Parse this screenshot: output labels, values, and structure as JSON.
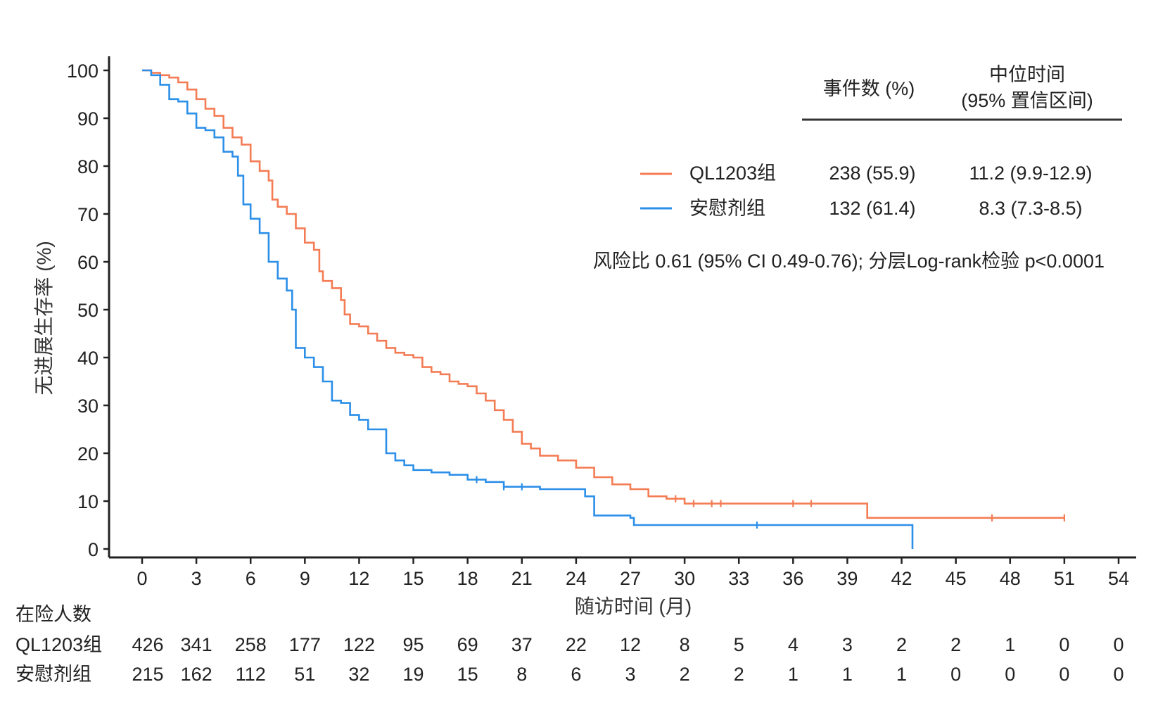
{
  "chart_data": {
    "type": "line",
    "subtype": "kaplan-meier",
    "ylabel": "无进展生存率 (%)",
    "xlabel": "随访时间 (月)",
    "xlim": [
      0,
      54
    ],
    "ylim": [
      0,
      100
    ],
    "x_ticks": [
      "0",
      "3",
      "6",
      "9",
      "12",
      "15",
      "18",
      "21",
      "24",
      "27",
      "30",
      "33",
      "36",
      "39",
      "42",
      "45",
      "48",
      "51",
      "54"
    ],
    "y_ticks": [
      "0",
      "10",
      "20",
      "30",
      "40",
      "50",
      "60",
      "70",
      "80",
      "90",
      "100"
    ],
    "table_headers": {
      "events": "事件数 (%)",
      "median_line1": "中位时间",
      "median_line2": "(95% 置信区间)"
    },
    "hr_text": "风险比 0.61 (95% CI 0.49-0.76); 分层Log-rank检验 p<0.0001",
    "risk_table_title": "在险人数",
    "series": [
      {
        "name": "QL1203组",
        "color": "#f47c54",
        "events": "238 (55.9)",
        "median": "11.2 (9.9-12.9)",
        "at_risk": [
          "426",
          "341",
          "258",
          "177",
          "122",
          "95",
          "69",
          "37",
          "22",
          "12",
          "8",
          "5",
          "4",
          "3",
          "2",
          "2",
          "1",
          "0",
          "0"
        ],
        "points": [
          [
            0,
            100
          ],
          [
            0.5,
            99.5
          ],
          [
            1,
            99
          ],
          [
            1.5,
            98.5
          ],
          [
            2,
            97.5
          ],
          [
            2.5,
            96
          ],
          [
            3,
            94
          ],
          [
            3.5,
            92
          ],
          [
            4,
            90.5
          ],
          [
            4.5,
            88
          ],
          [
            5,
            86
          ],
          [
            5.5,
            84.5
          ],
          [
            6,
            81
          ],
          [
            6.5,
            79
          ],
          [
            7,
            77
          ],
          [
            7.2,
            73
          ],
          [
            7.5,
            71.5
          ],
          [
            8,
            70
          ],
          [
            8.5,
            67
          ],
          [
            9,
            64
          ],
          [
            9.5,
            62.5
          ],
          [
            9.8,
            58
          ],
          [
            10,
            56
          ],
          [
            10.5,
            54.5
          ],
          [
            11,
            52
          ],
          [
            11.2,
            49
          ],
          [
            11.5,
            47
          ],
          [
            12,
            46.5
          ],
          [
            12.5,
            45
          ],
          [
            13,
            43.5
          ],
          [
            13.5,
            42
          ],
          [
            14,
            41
          ],
          [
            14.5,
            40.5
          ],
          [
            15,
            40
          ],
          [
            15.5,
            38
          ],
          [
            16,
            37
          ],
          [
            16.5,
            36.5
          ],
          [
            17,
            35
          ],
          [
            17.5,
            34.5
          ],
          [
            18,
            34
          ],
          [
            18.5,
            32.5
          ],
          [
            19,
            31
          ],
          [
            19.5,
            29
          ],
          [
            20,
            27
          ],
          [
            20.5,
            24.5
          ],
          [
            21,
            22
          ],
          [
            21.5,
            21
          ],
          [
            22,
            19.5
          ],
          [
            23,
            18.5
          ],
          [
            24,
            17
          ],
          [
            25,
            15
          ],
          [
            26,
            13.5
          ],
          [
            27,
            12.5
          ],
          [
            28,
            11
          ],
          [
            29,
            10.5
          ],
          [
            30,
            9.5
          ],
          [
            33,
            9.5
          ],
          [
            36,
            9.5
          ],
          [
            40,
            9.5
          ],
          [
            40.1,
            6.5
          ],
          [
            44,
            6.5
          ],
          [
            48,
            6.5
          ],
          [
            51,
            6.5
          ]
        ],
        "censor_x": [
          29.5,
          30.5,
          31.5,
          32,
          36,
          37,
          47,
          51
        ]
      },
      {
        "name": "安慰剂组",
        "color": "#2c8fe8",
        "events": "132 (61.4)",
        "median": "8.3 (7.3-8.5)",
        "at_risk": [
          "215",
          "162",
          "112",
          "51",
          "32",
          "19",
          "15",
          "8",
          "6",
          "3",
          "2",
          "2",
          "1",
          "1",
          "1",
          "0",
          "0",
          "0",
          "0"
        ],
        "points": [
          [
            0,
            100
          ],
          [
            0.5,
            99
          ],
          [
            1,
            97
          ],
          [
            1.5,
            94
          ],
          [
            2,
            93.5
          ],
          [
            2.5,
            91
          ],
          [
            3,
            88
          ],
          [
            3.5,
            87.5
          ],
          [
            4,
            86
          ],
          [
            4.5,
            83
          ],
          [
            5,
            82
          ],
          [
            5.3,
            78
          ],
          [
            5.6,
            72
          ],
          [
            6,
            69
          ],
          [
            6.5,
            66
          ],
          [
            7,
            60
          ],
          [
            7.5,
            56.5
          ],
          [
            8,
            54
          ],
          [
            8.3,
            50
          ],
          [
            8.5,
            42
          ],
          [
            9,
            40
          ],
          [
            9.5,
            38
          ],
          [
            10,
            35
          ],
          [
            10.5,
            31
          ],
          [
            11,
            30.5
          ],
          [
            11.5,
            28
          ],
          [
            12,
            27
          ],
          [
            12.5,
            25
          ],
          [
            13,
            25
          ],
          [
            13.5,
            20
          ],
          [
            14,
            18.5
          ],
          [
            14.5,
            17.5
          ],
          [
            15,
            16.5
          ],
          [
            16,
            16
          ],
          [
            17,
            15.5
          ],
          [
            18,
            14.5
          ],
          [
            19,
            14
          ],
          [
            20,
            13
          ],
          [
            21,
            13
          ],
          [
            22,
            12.5
          ],
          [
            24,
            12.5
          ],
          [
            24.5,
            11
          ],
          [
            25,
            7
          ],
          [
            26,
            7
          ],
          [
            27,
            6.5
          ],
          [
            27.2,
            5
          ],
          [
            30,
            5
          ],
          [
            34,
            5
          ],
          [
            38,
            5
          ],
          [
            42,
            5
          ],
          [
            42.6,
            5
          ],
          [
            42.6,
            0
          ]
        ],
        "censor_x": [
          18.5,
          20,
          21,
          34
        ]
      }
    ]
  }
}
